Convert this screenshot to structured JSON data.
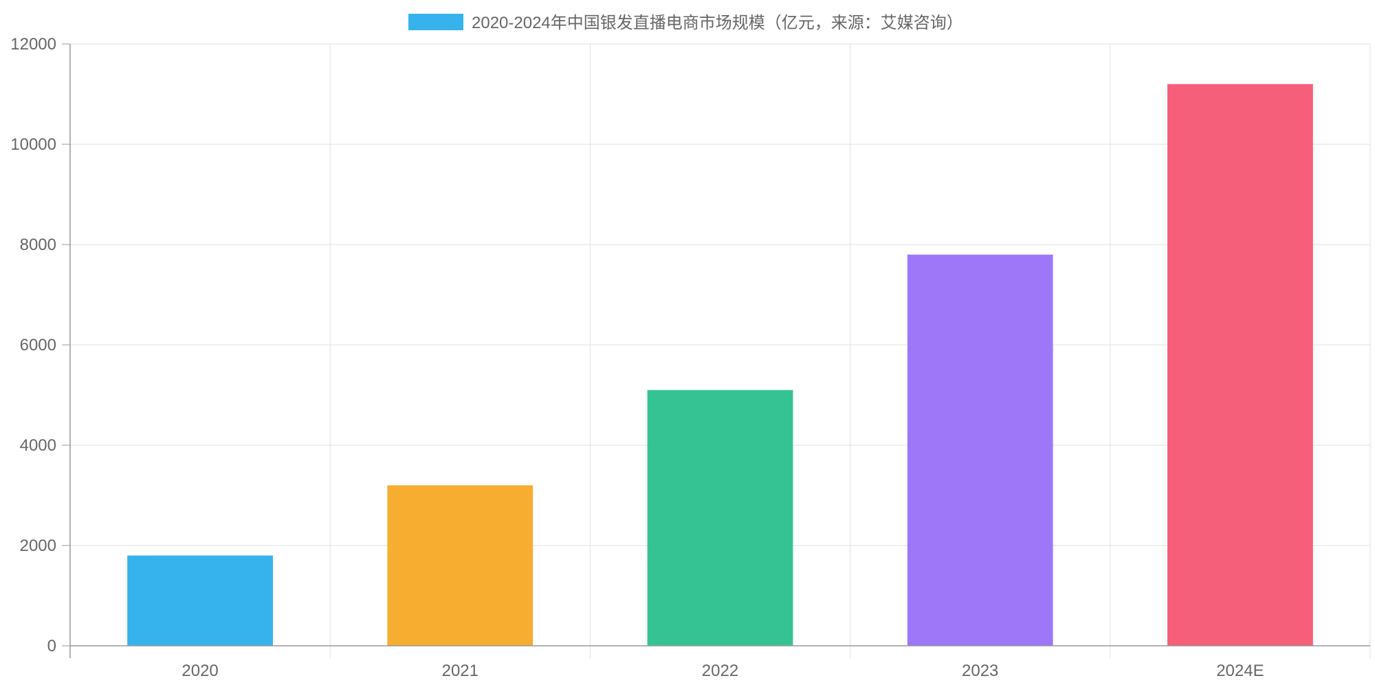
{
  "chart_data": {
    "type": "bar",
    "title": "",
    "xlabel": "",
    "ylabel": "",
    "categories": [
      "2020",
      "2021",
      "2022",
      "2023",
      "2024E"
    ],
    "series": [
      {
        "name": "2020-2024年中国银发直播电商市场规模（亿元，来源：艾媒咨询）",
        "values": [
          1800,
          3200,
          5100,
          7800,
          11200
        ]
      }
    ],
    "bar_colors": [
      "#36b3ec",
      "#f6ad30",
      "#36c393",
      "#9d77f7",
      "#f65f79"
    ],
    "legend": {
      "placement": "top-center",
      "swatch_color": "#36b3ec"
    },
    "ylim": [
      0,
      12000
    ],
    "yticks": [
      "0",
      "2000",
      "4000",
      "6000",
      "8000",
      "10000",
      "12000"
    ],
    "grid": true,
    "colors": {
      "grid": "#e1e1e1",
      "axis": "#999999",
      "text": "#666666"
    }
  }
}
